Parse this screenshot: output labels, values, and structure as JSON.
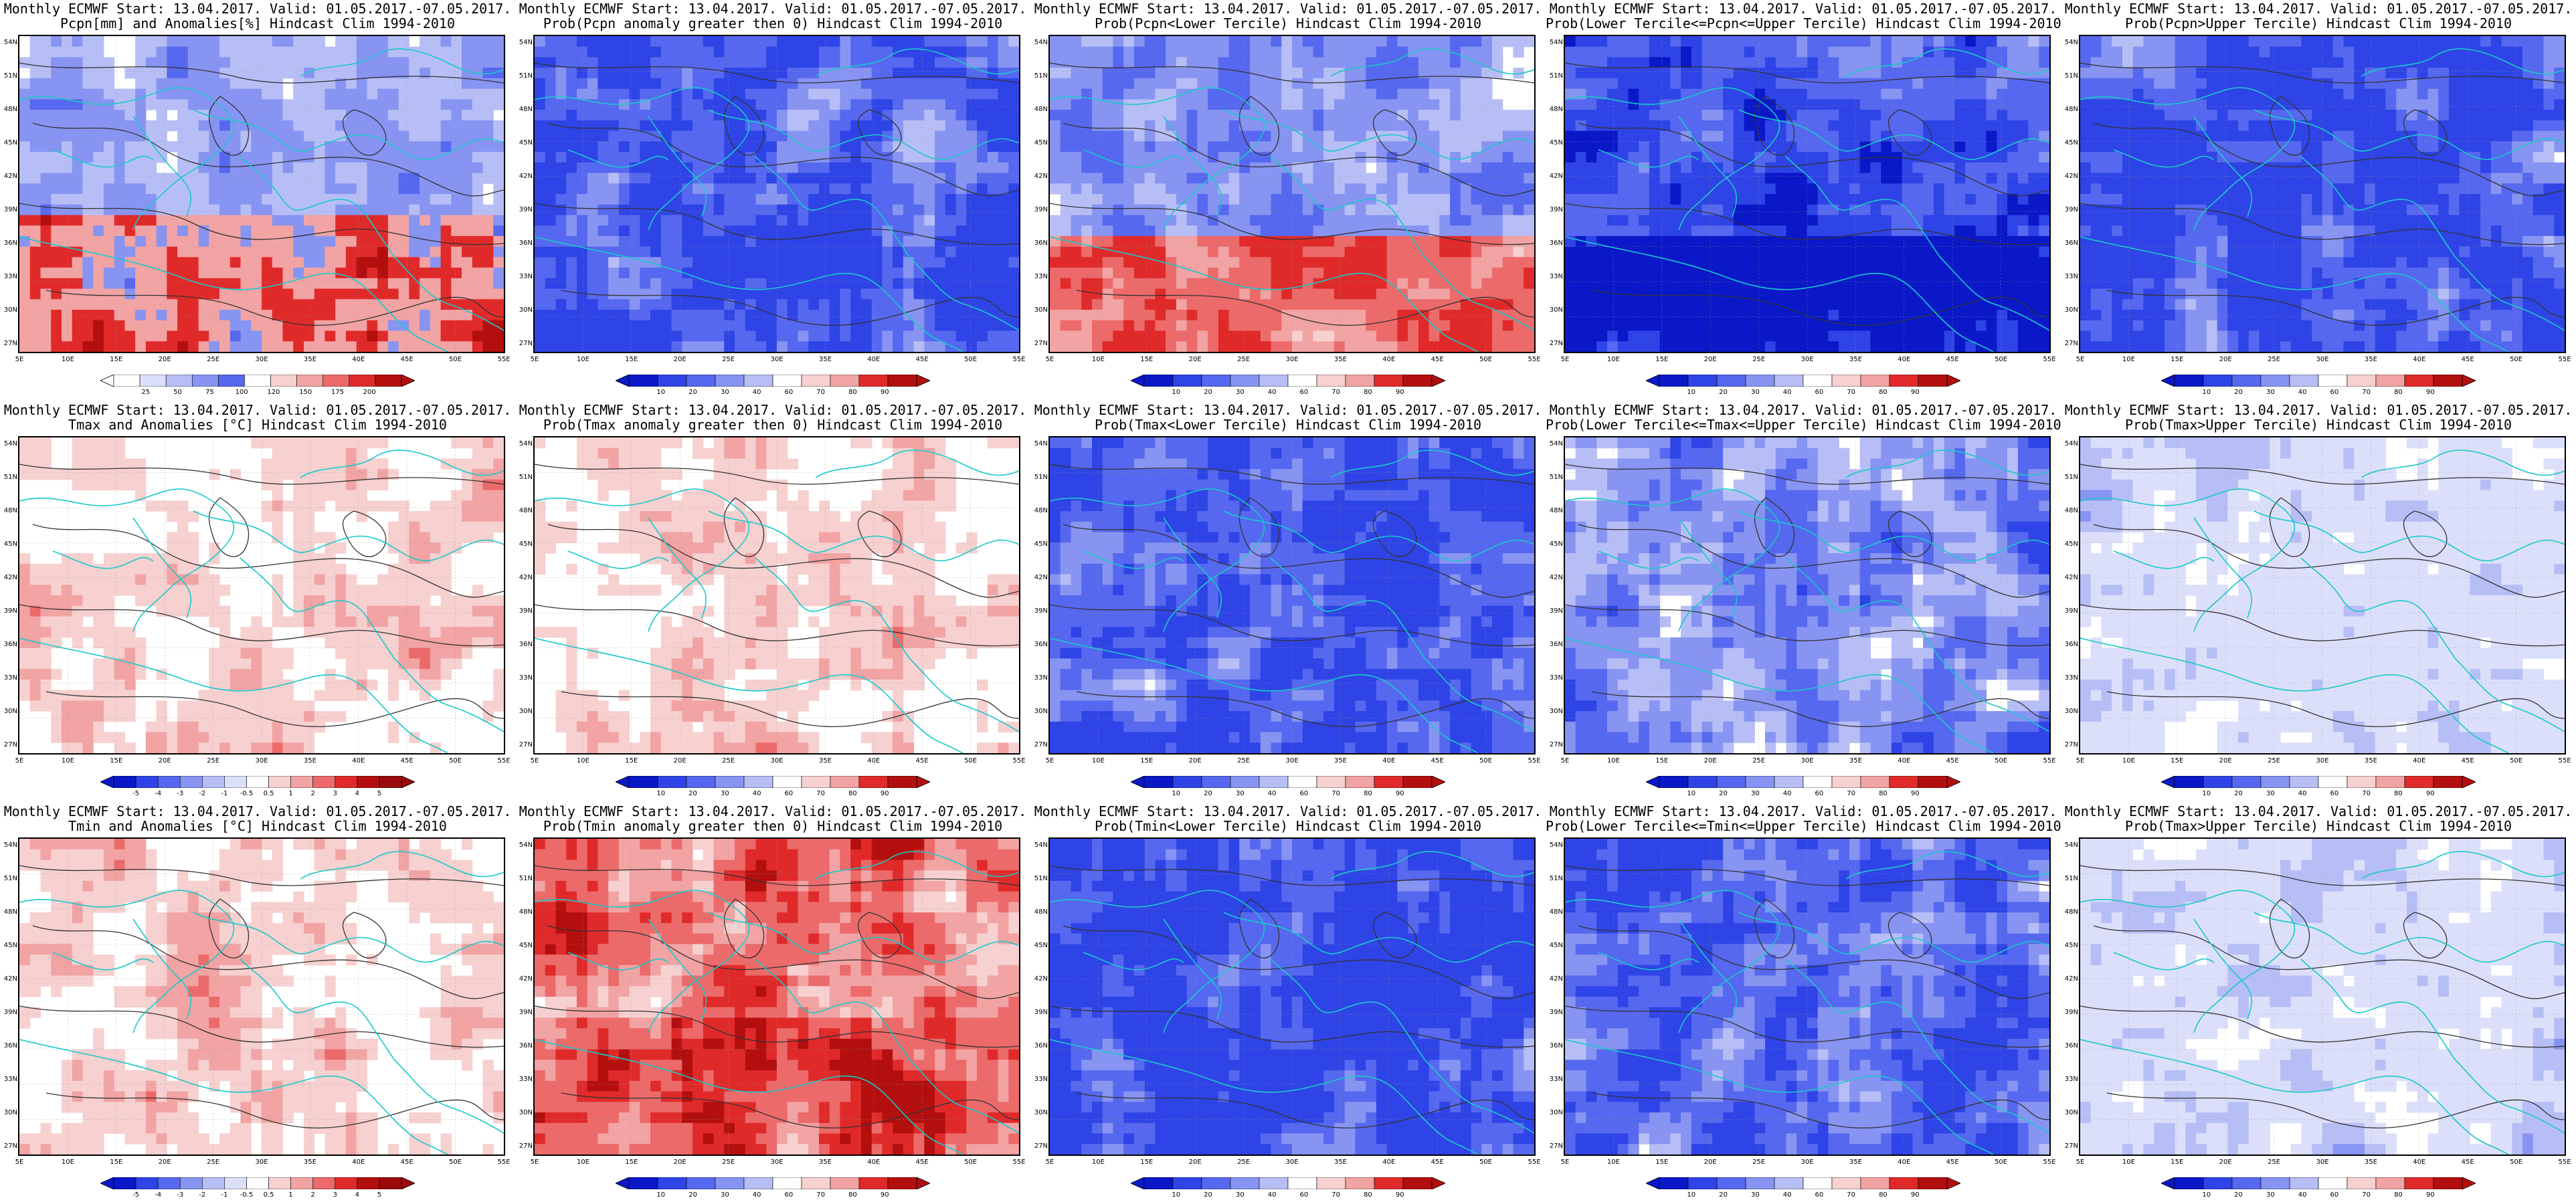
{
  "colors": {
    "blue_scale": [
      "#0a18c8",
      "#2e44e6",
      "#5668ef",
      "#8794f2",
      "#b7bef6",
      "#dcdffa"
    ],
    "red_scale": [
      "#f7d0d0",
      "#f2a3a3",
      "#ec6a6a",
      "#e02a2a",
      "#b30f0f"
    ],
    "coast": "#19c9c9",
    "contour": "#333333"
  },
  "lat_labels": [
    "54N",
    "51N",
    "48N",
    "45N",
    "42N",
    "39N",
    "36N",
    "33N",
    "30N",
    "27N"
  ],
  "lon_labels": [
    "5E",
    "10E",
    "15E",
    "20E",
    "25E",
    "30E",
    "35E",
    "40E",
    "45E",
    "50E",
    "55E"
  ],
  "rows": [
    {
      "panels": [
        {
          "title1": "Monthly ECMWF Start: 13.04.2017. Valid: 01.05.2017.-07.05.2017.",
          "title2": "Pcpn[mm] and Anomalies[%] Hindcast Clim 1994-2010",
          "style": "anom",
          "bias": -0.2,
          "cbar": [
            "25",
            "50",
            "75",
            "100",
            "120",
            "150",
            "175",
            "200"
          ]
        },
        {
          "title1": "Monthly ECMWF Start: 13.04.2017. Valid: 01.05.2017.-07.05.2017.",
          "title2": "Prob(Pcpn anomaly greater then 0) Hindcast Clim 1994-2010",
          "style": "blue",
          "bias": 0.45,
          "cbar": [
            "10",
            "20",
            "30",
            "40",
            "60",
            "70",
            "80",
            "90"
          ]
        },
        {
          "title1": "Monthly ECMWF Start: 13.04.2017. Valid: 01.05.2017.-07.05.2017.",
          "title2": "Prob(Pcpn<Lower Tercile) Hindcast Clim 1994-2010",
          "style": "mixed",
          "bias": 0.1,
          "cbar": [
            "10",
            "20",
            "30",
            "40",
            "60",
            "70",
            "80",
            "90"
          ]
        },
        {
          "title1": "Monthly ECMWF Start: 13.04.2017. Valid: 01.05.2017.-07.05.2017.",
          "title2": "Prob(Lower Tercile<=Pcpn<=Upper Tercile) Hindcast Clim 1994-2010",
          "style": "deepblue",
          "bias": 0.7,
          "cbar": [
            "10",
            "20",
            "30",
            "40",
            "60",
            "70",
            "80",
            "90"
          ]
        },
        {
          "title1": "Monthly ECMWF Start: 13.04.2017. Valid: 01.05.2017.-07.05.2017.",
          "title2": "Prob(Pcpn>Upper Tercile) Hindcast Clim 1994-2010",
          "style": "blue",
          "bias": 0.5,
          "cbar": [
            "10",
            "20",
            "30",
            "40",
            "60",
            "70",
            "80",
            "90"
          ]
        }
      ]
    },
    {
      "panels": [
        {
          "title1": "Monthly ECMWF Start: 13.04.2017. Valid: 01.05.2017.-07.05.2017.",
          "title2": "Tmax and Anomalies [°C] Hindcast Clim 1994-2010",
          "style": "lightred",
          "bias": 0.2,
          "cbar": [
            "-5",
            "-4",
            "-3",
            "-2",
            "-1",
            "-0.5",
            "0.5",
            "1",
            "2",
            "3",
            "4",
            "5"
          ]
        },
        {
          "title1": "Monthly ECMWF Start: 13.04.2017. Valid: 01.05.2017.-07.05.2017.",
          "title2": "Prob(Tmax anomaly greater then 0) Hindcast Clim 1994-2010",
          "style": "lightred",
          "bias": 0.25,
          "cbar": [
            "10",
            "20",
            "30",
            "40",
            "60",
            "70",
            "80",
            "90"
          ]
        },
        {
          "title1": "Monthly ECMWF Start: 13.04.2017. Valid: 01.05.2017.-07.05.2017.",
          "title2": "Prob(Tmax<Lower Tercile) Hindcast Clim 1994-2010",
          "style": "blue",
          "bias": 0.35,
          "cbar": [
            "10",
            "20",
            "30",
            "40",
            "60",
            "70",
            "80",
            "90"
          ]
        },
        {
          "title1": "Monthly ECMWF Start: 13.04.2017. Valid: 01.05.2017.-07.05.2017.",
          "title2": "Prob(Lower Tercile<=Tmax<=Upper Tercile) Hindcast Clim 1994-2010",
          "style": "blue",
          "bias": 0.1,
          "cbar": [
            "10",
            "20",
            "30",
            "40",
            "60",
            "70",
            "80",
            "90"
          ]
        },
        {
          "title1": "Monthly ECMWF Start: 13.04.2017. Valid: 01.05.2017.-07.05.2017.",
          "title2": "Prob(Tmax>Upper Tercile) Hindcast Clim 1994-2010",
          "style": "paleblue",
          "bias": 0.0,
          "cbar": [
            "10",
            "20",
            "30",
            "40",
            "60",
            "70",
            "80",
            "90"
          ]
        }
      ]
    },
    {
      "panels": [
        {
          "title1": "Monthly ECMWF Start: 13.04.2017. Valid: 01.05.2017.-07.05.2017.",
          "title2": "Tmin and Anomalies [°C] Hindcast Clim 1994-2010",
          "style": "lightred",
          "bias": 0.3,
          "cbar": [
            "-5",
            "-4",
            "-3",
            "-2",
            "-1",
            "-0.5",
            "0.5",
            "1",
            "2",
            "3",
            "4",
            "5"
          ]
        },
        {
          "title1": "Monthly ECMWF Start: 13.04.2017. Valid: 01.05.2017.-07.05.2017.",
          "title2": "Prob(Tmin anomaly greater then 0) Hindcast Clim 1994-2010",
          "style": "red",
          "bias": 0.45,
          "cbar": [
            "10",
            "20",
            "30",
            "40",
            "60",
            "70",
            "80",
            "90"
          ]
        },
        {
          "title1": "Monthly ECMWF Start: 13.04.2017. Valid: 01.05.2017.-07.05.2017.",
          "title2": "Prob(Tmin<Lower Tercile) Hindcast Clim 1994-2010",
          "style": "blue",
          "bias": 0.55,
          "cbar": [
            "10",
            "20",
            "30",
            "40",
            "60",
            "70",
            "80",
            "90"
          ]
        },
        {
          "title1": "Monthly ECMWF Start: 13.04.2017. Valid: 01.05.2017.-07.05.2017.",
          "title2": "Prob(Lower Tercile<=Tmin<=Upper Tercile) Hindcast Clim 1994-2010",
          "style": "blue",
          "bias": 0.3,
          "cbar": [
            "10",
            "20",
            "30",
            "40",
            "60",
            "70",
            "80",
            "90"
          ]
        },
        {
          "title1": "Monthly ECMWF Start: 13.04.2017. Valid: 01.05.2017.-07.05.2017.",
          "title2": "Prob(Tmax>Upper Tercile) Hindcast Clim 1994-2010",
          "style": "paleblue",
          "bias": 0.05,
          "cbar": [
            "10",
            "20",
            "30",
            "40",
            "60",
            "70",
            "80",
            "90"
          ]
        }
      ]
    }
  ]
}
